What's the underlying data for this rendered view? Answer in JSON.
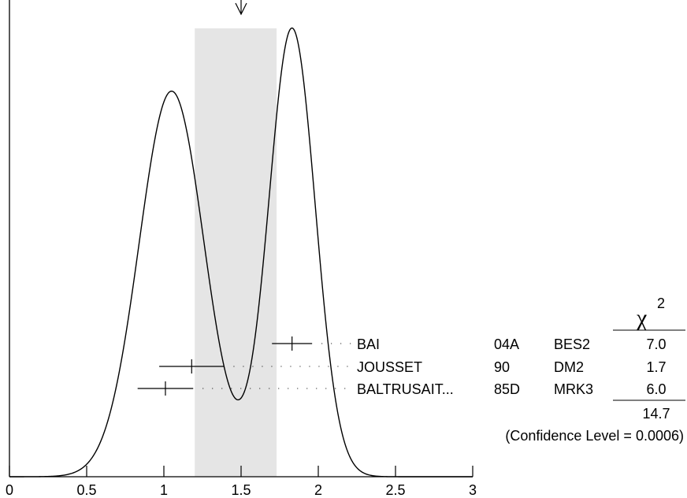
{
  "chart_data": {
    "type": "line",
    "title": "",
    "xlabel": "",
    "ylabel": "",
    "xlim": [
      0,
      3
    ],
    "x_ticks": [
      "0",
      "0.5",
      "1",
      "1.5",
      "2",
      "2.5",
      "3"
    ],
    "ideogram_components": [
      {
        "center": 1.05,
        "sigma": 0.21,
        "amplitude": 0.86
      },
      {
        "center": 1.83,
        "sigma": 0.15,
        "amplitude": 1.0
      }
    ],
    "band": {
      "from": 1.2,
      "to": 1.73
    },
    "measurements": [
      {
        "name": "BAI",
        "year": "04A",
        "tech": "BES2",
        "value": 1.83,
        "error": 0.13,
        "chi2": "7.0"
      },
      {
        "name": "JOUSSET",
        "year": "90",
        "tech": "DM2",
        "value": 1.18,
        "error": 0.21,
        "chi2": "1.7"
      },
      {
        "name": "BALTRUSAIT...",
        "year": "85D",
        "tech": "MRK3",
        "value": 1.01,
        "error": 0.18,
        "chi2": "6.0"
      }
    ],
    "chi2_header": "χ",
    "chi2_superscript": "2",
    "chi2_total": "14.7",
    "confidence": "(Confidence Level = 0.0006)"
  }
}
